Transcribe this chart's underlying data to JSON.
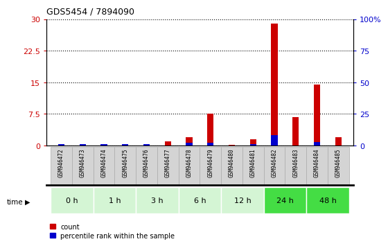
{
  "title": "GDS5454 / 7894090",
  "samples": [
    "GSM946472",
    "GSM946473",
    "GSM946474",
    "GSM946475",
    "GSM946476",
    "GSM946477",
    "GSM946478",
    "GSM946479",
    "GSM946480",
    "GSM946481",
    "GSM946482",
    "GSM946483",
    "GSM946484",
    "GSM946485"
  ],
  "count": [
    0.1,
    0.3,
    0.3,
    0.1,
    0.1,
    1.0,
    2.0,
    7.5,
    0.1,
    1.5,
    29.0,
    6.8,
    14.5,
    2.0
  ],
  "percentile": [
    1,
    1,
    1,
    1,
    1,
    0,
    2,
    2,
    0,
    1,
    8,
    0,
    3,
    0
  ],
  "time_groups": [
    {
      "label": "0 h",
      "start": 0,
      "end": 2,
      "color": "#d4f5d4"
    },
    {
      "label": "1 h",
      "start": 2,
      "end": 4,
      "color": "#d4f5d4"
    },
    {
      "label": "3 h",
      "start": 4,
      "end": 6,
      "color": "#d4f5d4"
    },
    {
      "label": "6 h",
      "start": 6,
      "end": 8,
      "color": "#d4f5d4"
    },
    {
      "label": "12 h",
      "start": 8,
      "end": 10,
      "color": "#d4f5d4"
    },
    {
      "label": "24 h",
      "start": 10,
      "end": 12,
      "color": "#44dd44"
    },
    {
      "label": "48 h",
      "start": 12,
      "end": 14,
      "color": "#44dd44"
    }
  ],
  "ylim_left": [
    0,
    30
  ],
  "ylim_right": [
    0,
    100
  ],
  "yticks_left": [
    0,
    7.5,
    15,
    22.5,
    30
  ],
  "yticks_right": [
    0,
    25,
    50,
    75,
    100
  ],
  "bar_color_count": "#cc0000",
  "bar_color_pct": "#0000cc",
  "bg_plot": "#ffffff",
  "label_bg": "#d4d4d4",
  "legend_count": "count",
  "legend_pct": "percentile rank within the sample",
  "fig_bg": "#ffffff"
}
